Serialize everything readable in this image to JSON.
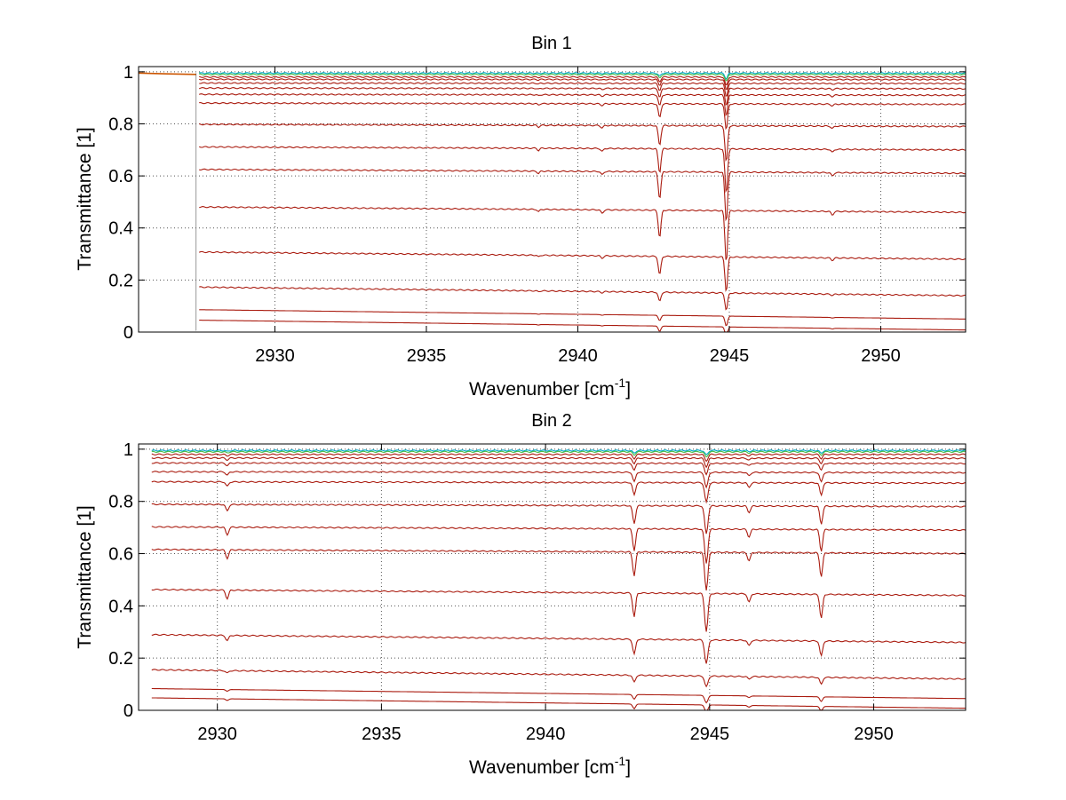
{
  "chart_data": [
    {
      "type": "line",
      "title": "Bin 1",
      "xlabel": "Wavenumber [cm",
      "xlabel_sup": "-1",
      "xlabel_end": "]",
      "ylabel": "Transmittance [1]",
      "xlim": [
        2925.5,
        2952.8
      ],
      "ylim": [
        0,
        1.02
      ],
      "xticks": [
        2930,
        2935,
        2940,
        2945,
        2950
      ],
      "xtick_labels": [
        "2930",
        "2935",
        "2940",
        "2945",
        "2950"
      ],
      "yticks": [
        0,
        0.2,
        0.4,
        0.6,
        0.8,
        1
      ],
      "ytick_labels": [
        "0",
        "0.2",
        "0.4",
        "0.6",
        "0.8",
        "1"
      ],
      "grid": true,
      "x_start": 2927.5,
      "x_end": 2952.8,
      "baselines": [
        0.995,
        0.99,
        0.98,
        0.97,
        0.955,
        0.935,
        0.91,
        0.875,
        0.79,
        0.7,
        0.61,
        0.46,
        0.28,
        0.14,
        0.05,
        0.008
      ],
      "slope": 0.038,
      "absorption_lines": [
        {
          "x": 2942.7,
          "strength": 0.16,
          "width": 0.06
        },
        {
          "x": 2944.9,
          "strength": 0.3,
          "width": 0.06
        },
        {
          "x": 2940.8,
          "strength": 0.02,
          "width": 0.06
        },
        {
          "x": 2938.7,
          "strength": 0.015,
          "width": 0.05
        },
        {
          "x": 2948.4,
          "strength": 0.02,
          "width": 0.06
        }
      ],
      "colors_top": [
        "#00aacc",
        "#44bb44",
        "#aacc00",
        "#ffaa00",
        "#ff6600",
        "#e04010"
      ],
      "color": "#aa1c10",
      "left_segment": {
        "x_from": 2925.5,
        "x_to": 2927.4,
        "values": [
          0.995,
          0.992,
          0.99
        ]
      }
    },
    {
      "type": "line",
      "title": "Bin 2",
      "xlabel": "Wavenumber [cm",
      "xlabel_sup": "-1",
      "xlabel_end": "]",
      "ylabel": "Transmittance [1]",
      "xlim": [
        2927.6,
        2952.8
      ],
      "ylim": [
        0,
        1.02
      ],
      "xticks": [
        2930,
        2935,
        2940,
        2945,
        2950
      ],
      "xtick_labels": [
        "2930",
        "2935",
        "2940",
        "2945",
        "2950"
      ],
      "yticks": [
        0,
        0.2,
        0.4,
        0.6,
        0.8,
        1
      ],
      "ytick_labels": [
        "0",
        "0.2",
        "0.4",
        "0.6",
        "0.8",
        "1"
      ],
      "grid": true,
      "x_start": 2928.0,
      "x_end": 2952.8,
      "baselines": [
        0.995,
        0.99,
        0.98,
        0.965,
        0.945,
        0.91,
        0.87,
        0.78,
        0.69,
        0.6,
        0.44,
        0.26,
        0.12,
        0.045,
        0.008
      ],
      "slope": 0.04,
      "absorption_lines": [
        {
          "x": 2930.3,
          "strength": 0.05,
          "width": 0.06
        },
        {
          "x": 2942.7,
          "strength": 0.14,
          "width": 0.06
        },
        {
          "x": 2944.9,
          "strength": 0.22,
          "width": 0.07
        },
        {
          "x": 2946.2,
          "strength": 0.05,
          "width": 0.06
        },
        {
          "x": 2948.4,
          "strength": 0.14,
          "width": 0.06
        }
      ],
      "colors_top": [
        "#00aacc",
        "#44bb44",
        "#aacc00",
        "#ffaa00",
        "#ff6600",
        "#e04010"
      ],
      "color": "#aa1c10"
    }
  ]
}
